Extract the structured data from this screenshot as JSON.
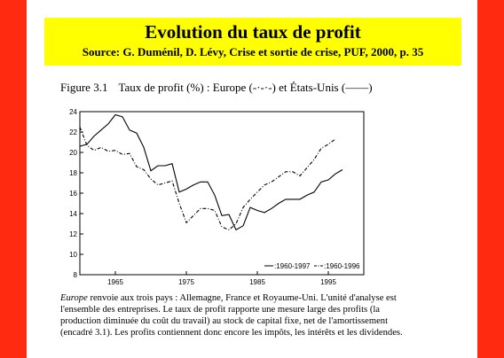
{
  "banner": {
    "title": "Evolution du taux de profit",
    "source": "Source: G. Duménil, D. Lévy, Crise et sortie de crise, PUF, 2000, p. 35"
  },
  "figure": {
    "number": "Figure 3.1",
    "caption": "Taux de profit (%) : Europe (-·-·-) et États-Unis (——)"
  },
  "body": {
    "lead": "Europe",
    "text": " renvoie aux trois pays : Allemagne, France et Royaume-Uni. L'unité d'analyse est l'ensemble des entreprises. Le taux de profit rapporte une mesure large des profits (la production diminuée du coût du travail) au stock de capital fixe, net de l'amortissement (encadré 3.1). Les profits contiennent donc encore les impôts, les intérêts et les dividendes."
  },
  "colors": {
    "accent_red": "#ff2a10",
    "banner_yellow": "#ffff00"
  },
  "chart_data": {
    "type": "line",
    "xlim": [
      1960,
      2000
    ],
    "ylim": [
      8,
      24
    ],
    "xticks": [
      1965,
      1975,
      1985,
      1995
    ],
    "yticks": [
      8,
      10,
      12,
      14,
      16,
      18,
      20,
      22,
      24
    ],
    "legend_position": "bottom-right",
    "series": [
      {
        "name": ":1960-1997",
        "style": "solid",
        "x": [
          1960,
          1961,
          1962,
          1963,
          1964,
          1965,
          1966,
          1967,
          1968,
          1969,
          1970,
          1971,
          1972,
          1973,
          1974,
          1975,
          1976,
          1977,
          1978,
          1979,
          1980,
          1981,
          1982,
          1983,
          1984,
          1985,
          1986,
          1987,
          1988,
          1989,
          1990,
          1991,
          1992,
          1993,
          1994,
          1995,
          1996,
          1997
        ],
        "values": [
          20.6,
          20.8,
          21.6,
          22.2,
          22.8,
          23.7,
          23.5,
          22.2,
          21.9,
          20.5,
          18.2,
          18.7,
          18.7,
          18.9,
          16.1,
          16.4,
          16.8,
          17.1,
          17.1,
          15.8,
          13.8,
          13.9,
          12.4,
          12.8,
          14.6,
          14.3,
          14.1,
          14.5,
          15.0,
          15.4,
          15.4,
          15.4,
          15.8,
          16.1,
          17.1,
          17.3,
          17.9,
          18.3
        ]
      },
      {
        "name": ":1960-1996",
        "style": "dash-dot",
        "x": [
          1960,
          1961,
          1962,
          1963,
          1964,
          1965,
          1966,
          1967,
          1968,
          1969,
          1970,
          1971,
          1972,
          1973,
          1974,
          1975,
          1976,
          1977,
          1978,
          1979,
          1980,
          1981,
          1982,
          1983,
          1984,
          1985,
          1986,
          1987,
          1988,
          1989,
          1990,
          1991,
          1992,
          1993,
          1994,
          1995,
          1996
        ],
        "values": [
          22.5,
          20.7,
          20.2,
          20.5,
          20.1,
          20.2,
          19.8,
          19.9,
          18.6,
          18.3,
          17.4,
          16.8,
          17.0,
          17.2,
          15.0,
          13.1,
          13.8,
          14.5,
          14.5,
          14.3,
          12.7,
          12.4,
          13.0,
          14.6,
          15.4,
          16.1,
          16.8,
          17.1,
          17.6,
          18.1,
          18.1,
          17.7,
          18.5,
          19.3,
          20.4,
          20.8,
          21.3
        ]
      }
    ]
  }
}
